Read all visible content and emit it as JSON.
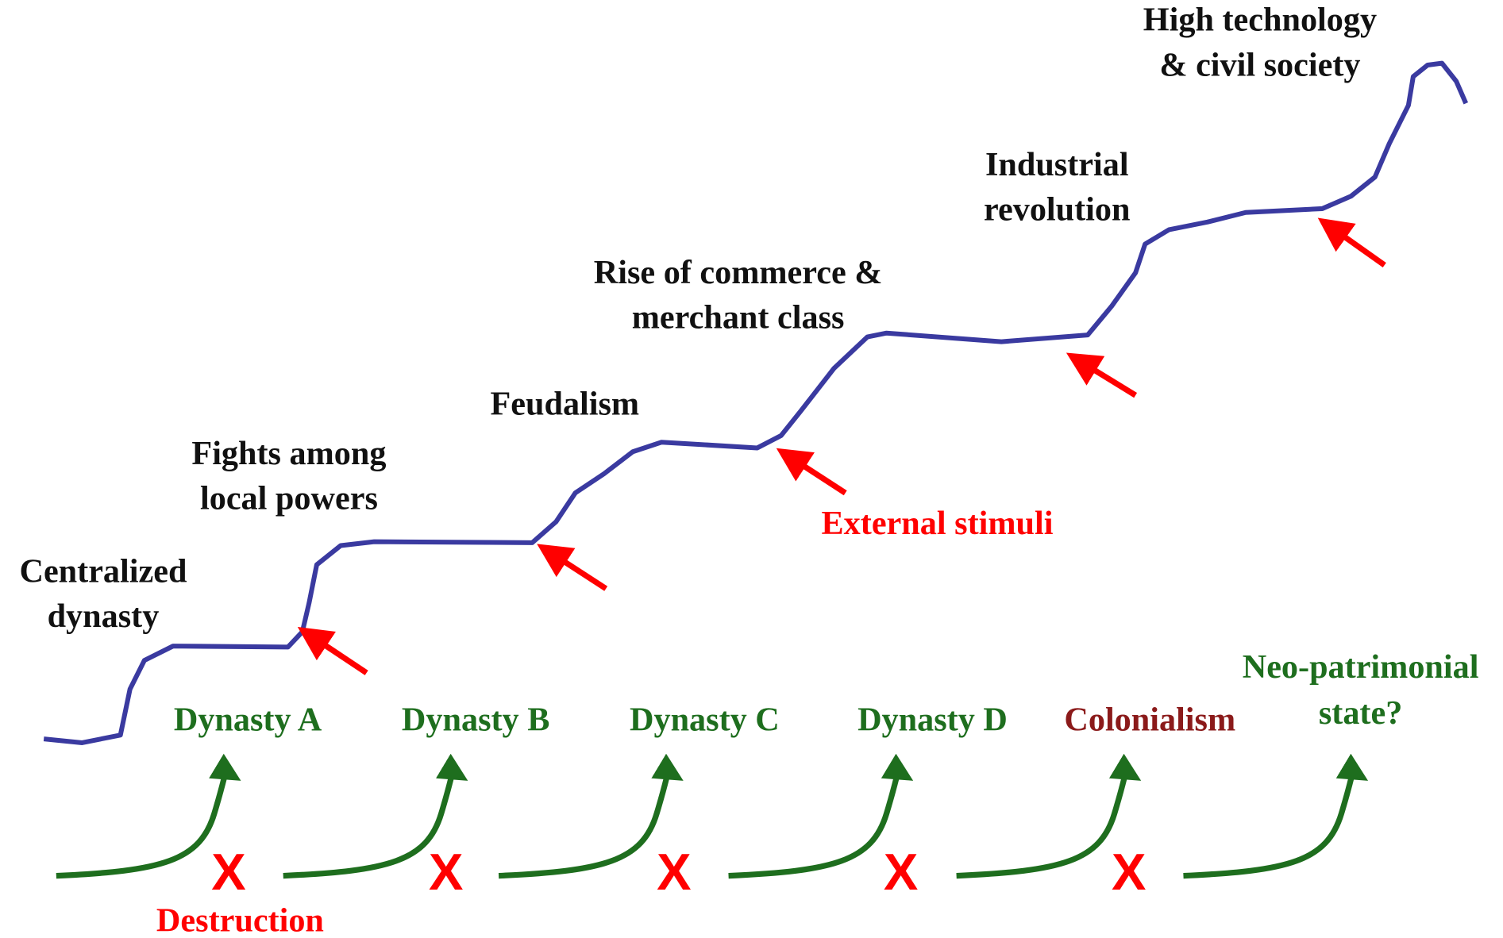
{
  "stages": [
    {
      "lines": [
        "Centralized",
        "dynasty"
      ]
    },
    {
      "lines": [
        "Fights among",
        "local powers"
      ]
    },
    {
      "lines": [
        "Feudalism"
      ]
    },
    {
      "lines": [
        "Rise of commerce &",
        "merchant class"
      ]
    },
    {
      "lines": [
        "Industrial",
        "revolution"
      ]
    },
    {
      "lines": [
        "High technology",
        "& civil society"
      ]
    }
  ],
  "periods": [
    {
      "lines": [
        "Dynasty A"
      ]
    },
    {
      "lines": [
        "Dynasty B"
      ]
    },
    {
      "lines": [
        "Dynasty C"
      ]
    },
    {
      "lines": [
        "Dynasty D"
      ]
    },
    {
      "lines": [
        "Colonialism"
      ]
    },
    {
      "lines": [
        "Neo-patrimonial",
        "state?"
      ]
    }
  ],
  "annotations": {
    "stimuli": "External stimuli",
    "destruction": "Destruction"
  },
  "marks": [
    "X",
    "X",
    "X",
    "X",
    "X"
  ]
}
